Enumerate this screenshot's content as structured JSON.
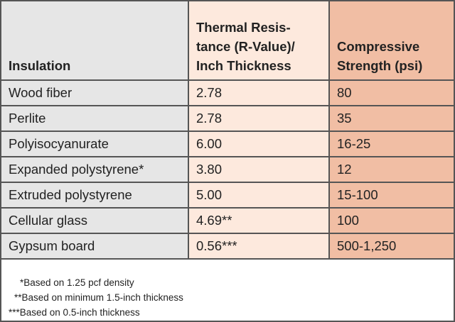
{
  "table": {
    "headers": [
      "Insulation",
      "Thermal Resis-\ntance (R-Value)/\nInch Thickness",
      "Compressive\nStrength (psi)"
    ],
    "header_lines": {
      "col2": [
        "Thermal Resis-",
        "tance (R-Value)/",
        "Inch Thickness"
      ],
      "col3": [
        "Compressive",
        "Strength (psi)"
      ]
    },
    "rows": [
      [
        "Wood fiber",
        "2.78",
        "80"
      ],
      [
        "Perlite",
        "2.78",
        "35"
      ],
      [
        "Polyisocyanurate",
        "6.00",
        "16-25"
      ],
      [
        "Expanded polystyrene*",
        "3.80",
        "12"
      ],
      [
        "Extruded polystyrene",
        "5.00",
        "15-100"
      ],
      [
        "Cellular glass",
        "4.69**",
        "100"
      ],
      [
        "Gypsum board",
        "0.56***",
        "500-1,250"
      ]
    ]
  },
  "footnotes": [
    "*Based on 1.25 pcf density",
    "**Based on minimum 1.5-inch thickness",
    "***Based on 0.5-inch thickness"
  ],
  "colors": {
    "column1": "#e6e6e6",
    "column2": "#fde9dd",
    "column3": "#f1bea4",
    "border": "#555555"
  }
}
